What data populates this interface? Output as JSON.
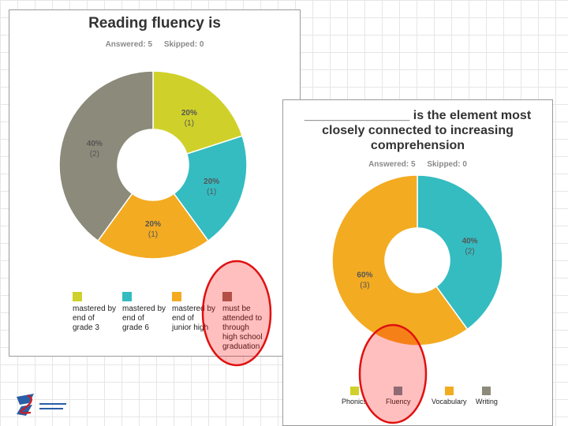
{
  "chart_data": [
    {
      "type": "pie",
      "donut": true,
      "title": "Reading fluency is",
      "answered_label": "Answered: 5",
      "skipped_label": "Skipped: 0",
      "slices": [
        {
          "label": "mastered by end of grade 3",
          "percent_label": "20%",
          "count_label": "(1)",
          "value": 20,
          "color": "#cfd12a"
        },
        {
          "label": "mastered by end of grade 6",
          "percent_label": "20%",
          "count_label": "(1)",
          "value": 20,
          "color": "#34bcc1"
        },
        {
          "label": "mastered by end of junior high",
          "percent_label": "20%",
          "count_label": "(1)",
          "value": 20,
          "color": "#f3ab21"
        },
        {
          "label": "must be attended to through high school graduation",
          "percent_label": "",
          "count_label": "",
          "value": 0,
          "color": "#b36b5b"
        },
        {
          "label": "",
          "percent_label": "40%",
          "count_label": "(2)",
          "value": 40,
          "color": "#8c8a7a"
        }
      ],
      "legend": [
        {
          "lines": [
            "mastered by",
            "end of",
            "grade 3"
          ],
          "color": "#cfd12a"
        },
        {
          "lines": [
            "mastered by",
            "end of",
            "grade 6"
          ],
          "color": "#34bcc1"
        },
        {
          "lines": [
            "mastered by",
            "end of",
            "junior high"
          ],
          "color": "#f3ab21"
        },
        {
          "lines": [
            "must be",
            "attended to",
            "through",
            "high school",
            "graduation"
          ],
          "color": "#9a6a5e"
        }
      ]
    },
    {
      "type": "pie",
      "donut": true,
      "title": "_______________ is the element most closely connected to increasing comprehension",
      "answered_label": "Answered: 5",
      "skipped_label": "Skipped: 0",
      "slices": [
        {
          "label": "Phonics",
          "percent_label": "",
          "count_label": "",
          "value": 0,
          "color": "#cfd12a"
        },
        {
          "label": "Fluency",
          "percent_label": "40%",
          "count_label": "(2)",
          "value": 40,
          "color": "#34bcc1"
        },
        {
          "label": "Vocabulary",
          "percent_label": "60%",
          "count_label": "(3)",
          "value": 60,
          "color": "#f3ab21"
        },
        {
          "label": "Writing",
          "percent_label": "",
          "count_label": "",
          "value": 0,
          "color": "#8c8a7a"
        }
      ],
      "legend": [
        {
          "lines": [
            "Phonics"
          ],
          "color": "#cfd12a"
        },
        {
          "lines": [
            "Fluency"
          ],
          "color": "#6b8f9a"
        },
        {
          "lines": [
            "Vocabulary"
          ],
          "color": "#f3ab21"
        },
        {
          "lines": [
            "Writing"
          ],
          "color": "#8c8a7a"
        }
      ]
    }
  ]
}
